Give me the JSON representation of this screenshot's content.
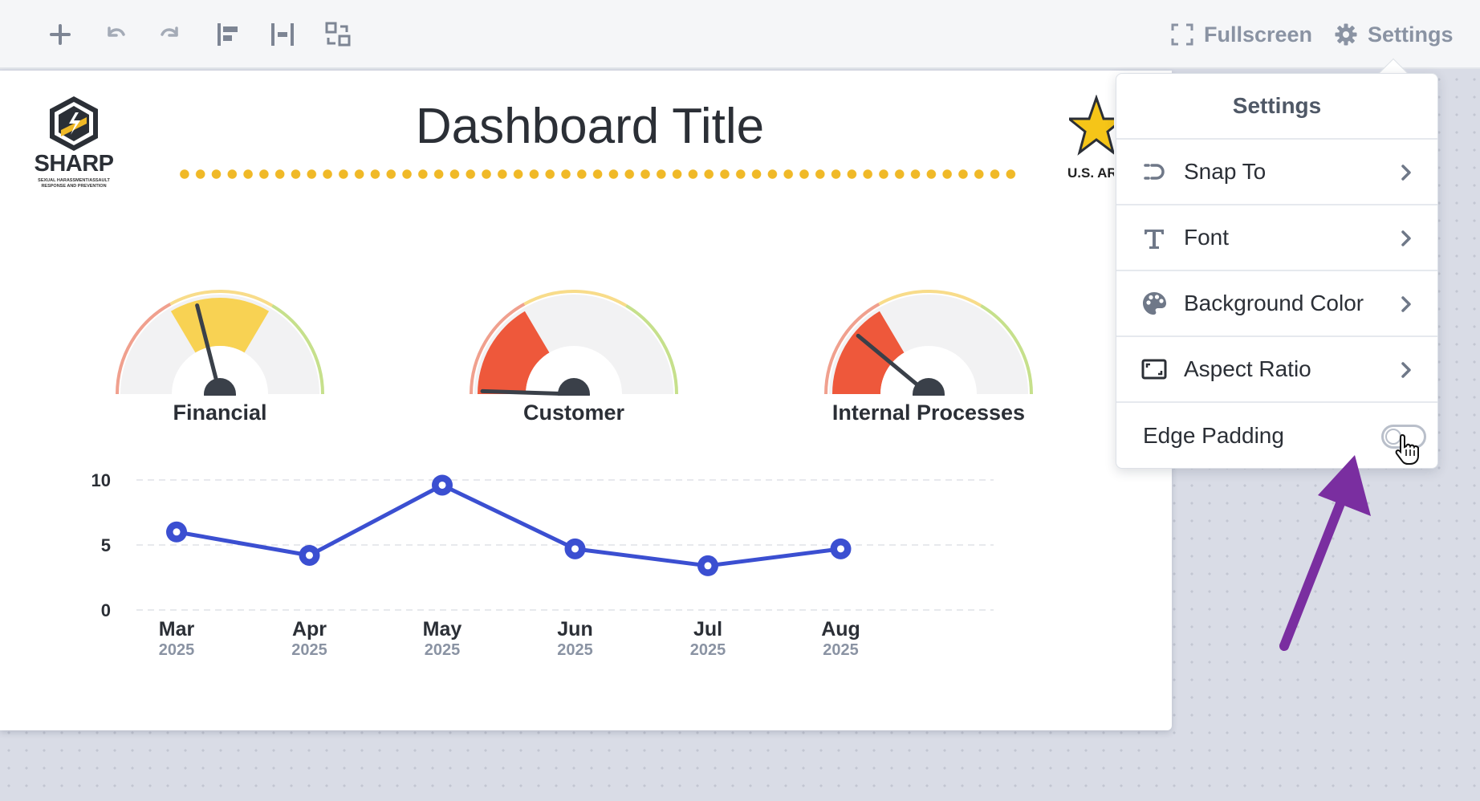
{
  "toolbar": {
    "icons": [
      "plus-icon",
      "undo-icon",
      "redo-icon",
      "align-left-icon",
      "distribute-horizontal-icon",
      "swap-icon"
    ],
    "fullscreen_label": "Fullscreen",
    "settings_label": "Settings"
  },
  "dashboard": {
    "title": "Dashboard Title",
    "logo_left": {
      "word": "SHARP",
      "subtitle": "SEXUAL HARASSMENT/ASSAULT RESPONSE AND PREVENTION"
    },
    "logo_right": {
      "text": "U.S. ARMY"
    },
    "accent_color": "#f0b927"
  },
  "gauges": [
    {
      "label": "Financial",
      "value": 0.42,
      "zone_color": "#f9cf45"
    },
    {
      "label": "Customer",
      "value": 0.01,
      "zone_color": "#ee4b2b"
    },
    {
      "label": "Internal Processes",
      "value": 0.22,
      "zone_color": "#ee4b2b"
    }
  ],
  "chart_data": {
    "type": "line",
    "categories": [
      "Mar",
      "Apr",
      "May",
      "Jun",
      "Jul",
      "Aug"
    ],
    "category_sublabels": [
      "2025",
      "2025",
      "2025",
      "2025",
      "2025",
      "2025"
    ],
    "series": [
      {
        "values": [
          6,
          4.2,
          9.6,
          4.7,
          3.4,
          4.7
        ],
        "color": "#3b4fd1"
      }
    ],
    "ylim": [
      0,
      10
    ],
    "yticks": [
      "0",
      "5",
      "10"
    ],
    "grid": true
  },
  "settings_panel": {
    "title": "Settings",
    "items": [
      {
        "label": "Snap To",
        "icon": "snap-to-icon"
      },
      {
        "label": "Font",
        "icon": "font-icon"
      },
      {
        "label": "Background Color",
        "icon": "palette-icon"
      },
      {
        "label": "Aspect Ratio",
        "icon": "aspect-ratio-icon"
      }
    ],
    "edge_padding_label": "Edge Padding",
    "edge_padding_on": false
  },
  "annotation_color": "#7a2ea0"
}
